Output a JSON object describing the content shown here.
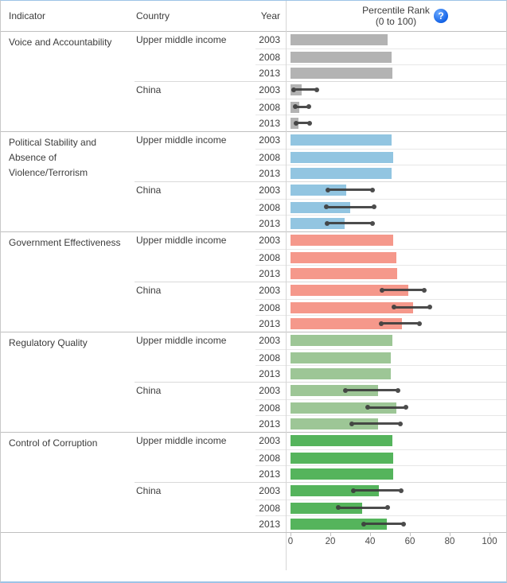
{
  "header": {
    "indicator": "Indicator",
    "country": "Country",
    "year": "Year",
    "percentile_line1": "Percentile Rank",
    "percentile_line2": "(0 to 100)",
    "help_glyph": "?"
  },
  "axis": {
    "min": 0,
    "max": 100,
    "ticks": [
      0,
      20,
      40,
      60,
      80,
      100
    ]
  },
  "colors": {
    "voice_accountability": "#b3b3b3",
    "political_stability": "#92c5e1",
    "government_effectiveness": "#f5988b",
    "regulatory_quality": "#9dc696",
    "control_of_corruption": "#55b45c",
    "error_bar": "#3d3d3d",
    "help_icon_blue": "#1463e6"
  },
  "chart_data": {
    "type": "bar",
    "title": "Percentile Rank (0 to 100)",
    "xlabel": "",
    "ylabel": "",
    "xlim": [
      0,
      100
    ],
    "legend": "none",
    "grid": "off",
    "orientation": "horizontal",
    "note": "Error bars (confidence intervals) shown on China rows only",
    "indicators": [
      {
        "name": "Voice and Accountability",
        "color": "#b3b3b3",
        "groups": [
          {
            "country": "Upper middle income",
            "rows": [
              {
                "year": "2003",
                "value": 48.9
              },
              {
                "year": "2008",
                "value": 50.7
              },
              {
                "year": "2013",
                "value": 51.1
              }
            ]
          },
          {
            "country": "China",
            "rows": [
              {
                "year": "2003",
                "value": 5.5,
                "err_lo": 1,
                "err_hi": 13.5
              },
              {
                "year": "2008",
                "value": 4.5,
                "err_lo": 2,
                "err_hi": 9.5
              },
              {
                "year": "2013",
                "value": 3.8,
                "err_lo": 2.5,
                "err_hi": 10
              }
            ]
          }
        ]
      },
      {
        "name": "Political Stability and Absence of Violence/Terrorism",
        "color": "#92c5e1",
        "groups": [
          {
            "country": "Upper middle income",
            "rows": [
              {
                "year": "2003",
                "value": 50.8
              },
              {
                "year": "2008",
                "value": 51.4
              },
              {
                "year": "2013",
                "value": 50.8
              }
            ]
          },
          {
            "country": "China",
            "rows": [
              {
                "year": "2003",
                "value": 28,
                "err_lo": 18.5,
                "err_hi": 41.5
              },
              {
                "year": "2008",
                "value": 30,
                "err_lo": 17.5,
                "err_hi": 42.5
              },
              {
                "year": "2013",
                "value": 27,
                "err_lo": 18,
                "err_hi": 41.5
              }
            ]
          }
        ]
      },
      {
        "name": "Government Effectiveness",
        "color": "#f5988b",
        "groups": [
          {
            "country": "Upper middle income",
            "rows": [
              {
                "year": "2003",
                "value": 51.5
              },
              {
                "year": "2008",
                "value": 53.2
              },
              {
                "year": "2013",
                "value": 53.5
              }
            ]
          },
          {
            "country": "China",
            "rows": [
              {
                "year": "2003",
                "value": 59,
                "err_lo": 45.5,
                "err_hi": 67.5
              },
              {
                "year": "2008",
                "value": 61.5,
                "err_lo": 51.5,
                "err_hi": 70.5
              },
              {
                "year": "2013",
                "value": 56,
                "err_lo": 45,
                "err_hi": 65
              }
            ]
          }
        ]
      },
      {
        "name": "Regulatory Quality",
        "color": "#9dc696",
        "groups": [
          {
            "country": "Upper middle income",
            "rows": [
              {
                "year": "2003",
                "value": 51
              },
              {
                "year": "2008",
                "value": 50.3
              },
              {
                "year": "2013",
                "value": 50.3
              }
            ]
          },
          {
            "country": "China",
            "rows": [
              {
                "year": "2003",
                "value": 44,
                "err_lo": 27,
                "err_hi": 54.5
              },
              {
                "year": "2008",
                "value": 53,
                "err_lo": 38.5,
                "err_hi": 58.5
              },
              {
                "year": "2013",
                "value": 44,
                "err_lo": 30.5,
                "err_hi": 55.5
              }
            ]
          }
        ]
      },
      {
        "name": "Control of Corruption",
        "color": "#55b45c",
        "groups": [
          {
            "country": "Upper middle income",
            "rows": [
              {
                "year": "2003",
                "value": 51
              },
              {
                "year": "2008",
                "value": 51.6
              },
              {
                "year": "2013",
                "value": 51.6
              }
            ]
          },
          {
            "country": "China",
            "rows": [
              {
                "year": "2003",
                "value": 44.5,
                "err_lo": 31,
                "err_hi": 56
              },
              {
                "year": "2008",
                "value": 36,
                "err_lo": 23.5,
                "err_hi": 49
              },
              {
                "year": "2013",
                "value": 48.5,
                "err_lo": 36.5,
                "err_hi": 57
              }
            ]
          }
        ]
      }
    ]
  }
}
